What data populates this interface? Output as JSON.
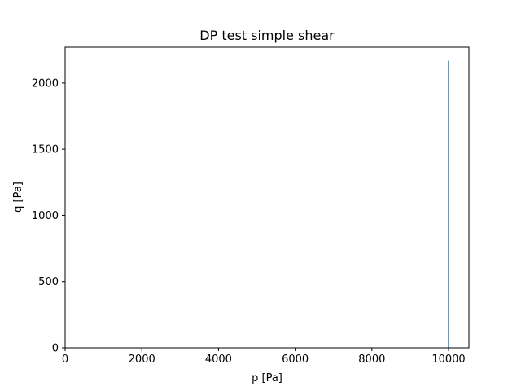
{
  "chart_data": {
    "type": "line",
    "title": "DP test simple shear",
    "xlabel": "p [Pa]",
    "ylabel": "q [Pa]",
    "xlim": [
      0,
      10530
    ],
    "ylim": [
      0,
      2270
    ],
    "xticks": [
      0,
      2000,
      4000,
      6000,
      8000,
      10000
    ],
    "yticks": [
      0,
      500,
      1000,
      1500,
      2000
    ],
    "grid": false,
    "series": [
      {
        "color": "#1f77b4",
        "x": [
          10000,
          10000
        ],
        "y": [
          0,
          2168
        ]
      }
    ]
  }
}
